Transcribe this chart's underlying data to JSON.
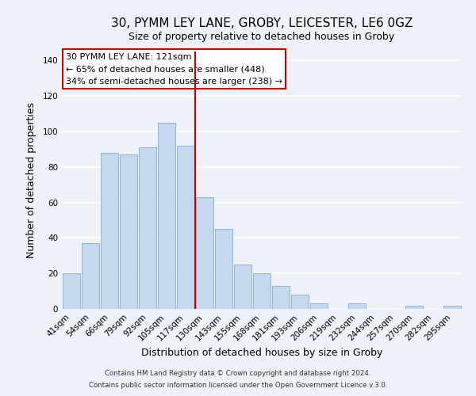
{
  "title": "30, PYMM LEY LANE, GROBY, LEICESTER, LE6 0GZ",
  "subtitle": "Size of property relative to detached houses in Groby",
  "xlabel": "Distribution of detached houses by size in Groby",
  "ylabel": "Number of detached properties",
  "footer_line1": "Contains HM Land Registry data © Crown copyright and database right 2024.",
  "footer_line2": "Contains public sector information licensed under the Open Government Licence v.3.0.",
  "categories": [
    "41sqm",
    "54sqm",
    "66sqm",
    "79sqm",
    "92sqm",
    "105sqm",
    "117sqm",
    "130sqm",
    "143sqm",
    "155sqm",
    "168sqm",
    "181sqm",
    "193sqm",
    "206sqm",
    "219sqm",
    "232sqm",
    "244sqm",
    "257sqm",
    "270sqm",
    "282sqm",
    "295sqm"
  ],
  "values": [
    20,
    37,
    88,
    87,
    91,
    105,
    92,
    63,
    45,
    25,
    20,
    13,
    8,
    3,
    0,
    3,
    0,
    0,
    2,
    0,
    2
  ],
  "bar_color": "#c5d8f0",
  "bar_edge_color": "#8ab4d8",
  "vline_x": 6.5,
  "vline_color": "#cc0000",
  "annotation_box_text": "30 PYMM LEY LANE: 121sqm\n← 65% of detached houses are smaller (448)\n34% of semi-detached houses are larger (238) →",
  "ylim": [
    0,
    145
  ],
  "title_fontsize": 11,
  "subtitle_fontsize": 9,
  "axis_label_fontsize": 9,
  "tick_fontsize": 7.5,
  "background_color": "#eef2f8"
}
